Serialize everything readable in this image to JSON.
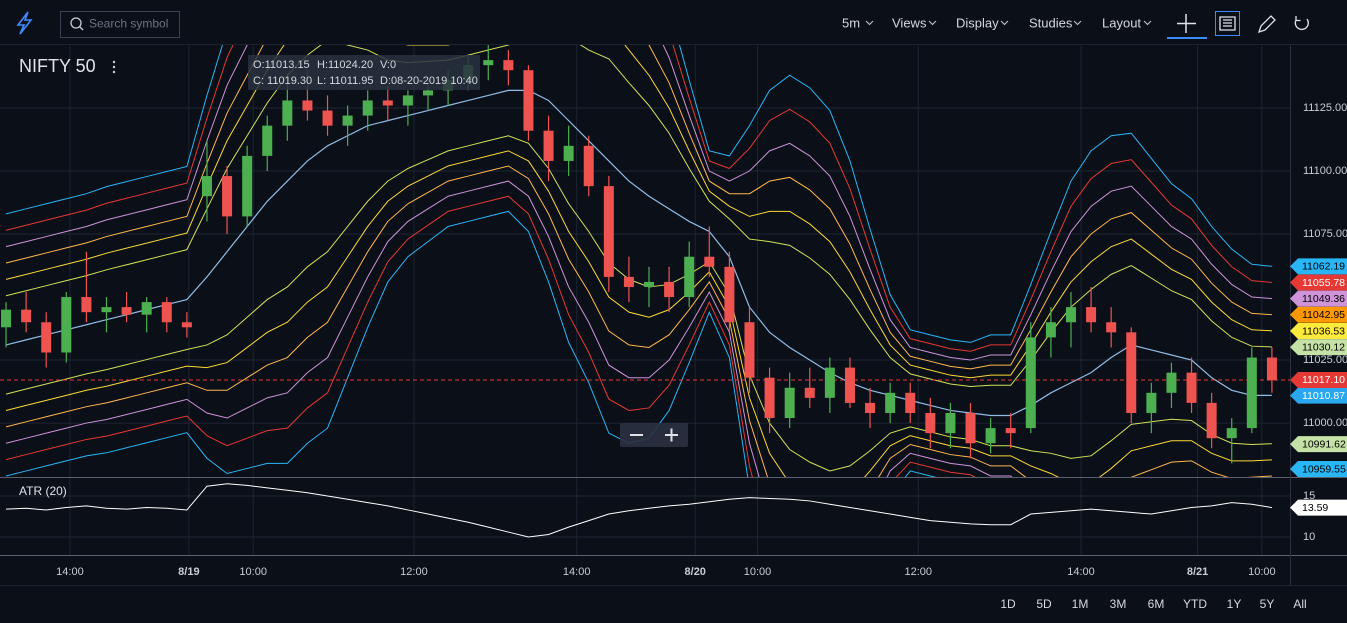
{
  "toolbar": {
    "search_placeholder": "Search symbol",
    "menus": [
      "5m",
      "Views",
      "Display",
      "Studies",
      "Layout"
    ]
  },
  "chart_data": {
    "type": "candlestick",
    "title": "NIFTY 50",
    "tooltip": [
      "O:11013.15",
      "H:11024.20",
      "V:0",
      "C: 11019.30",
      "L: 11011.95",
      "D:08-20-2019 10:40"
    ],
    "up_color": "#4caf50",
    "down_color": "#ef5350",
    "candles": {
      "open": [
        11038,
        11045,
        11040,
        11028,
        11050,
        11044,
        11046,
        11043,
        11048,
        11040,
        11090,
        11098,
        11082,
        11106,
        11118,
        11128,
        11124,
        11118,
        11122,
        11128,
        11126,
        11130,
        11132,
        11136,
        11142,
        11144,
        11140,
        11116,
        11104,
        11110,
        11094,
        11058,
        11054,
        11056,
        11050,
        11066,
        11062,
        11040,
        11018,
        11002,
        11014,
        11010,
        11022,
        11008,
        11004,
        11012,
        11004,
        10996,
        11004,
        10992,
        10998,
        10998,
        11034,
        11040,
        11046,
        11040,
        11036,
        11004,
        11012,
        11020,
        11008,
        10994,
        10998,
        11026
      ],
      "high": [
        11048,
        11052,
        11044,
        11052,
        11068,
        11050,
        11052,
        11050,
        11050,
        11044,
        11112,
        11102,
        11110,
        11122,
        11134,
        11140,
        11130,
        11126,
        11132,
        11134,
        11132,
        11136,
        11140,
        11146,
        11150,
        11148,
        11142,
        11122,
        11118,
        11114,
        11098,
        11066,
        11062,
        11062,
        11072,
        11078,
        11068,
        11046,
        11022,
        11020,
        11022,
        11026,
        11026,
        11014,
        11016,
        11016,
        11010,
        11008,
        11008,
        11002,
        11004,
        11040,
        11046,
        11052,
        11054,
        11046,
        11038,
        11016,
        11024,
        11026,
        11012,
        11002,
        11030,
        11030
      ],
      "low": [
        11030,
        11036,
        11022,
        11024,
        11040,
        11036,
        11040,
        11036,
        11036,
        11034,
        11080,
        11075,
        11078,
        11100,
        11112,
        11120,
        11114,
        11110,
        11116,
        11120,
        11118,
        11124,
        11126,
        11132,
        11136,
        11134,
        11112,
        11096,
        11098,
        11090,
        11052,
        11048,
        11046,
        11044,
        11046,
        11058,
        11036,
        11012,
        10996,
        10998,
        11006,
        11004,
        11006,
        10998,
        11000,
        11000,
        10990,
        10990,
        10986,
        10988,
        10990,
        10996,
        11026,
        11030,
        11036,
        11030,
        11000,
        10996,
        11006,
        11004,
        10990,
        10984,
        10996,
        11012
      ],
      "close": [
        11045,
        11040,
        11028,
        11050,
        11044,
        11046,
        11043,
        11048,
        11040,
        11038,
        11098,
        11082,
        11106,
        11118,
        11128,
        11124,
        11118,
        11122,
        11128,
        11126,
        11130,
        11132,
        11136,
        11142,
        11144,
        11140,
        11116,
        11104,
        11110,
        11094,
        11058,
        11054,
        11056,
        11050,
        11066,
        11062,
        11040,
        11018,
        11002,
        11014,
        11010,
        11022,
        11008,
        11004,
        11012,
        11004,
        10996,
        11004,
        10992,
        10998,
        10996,
        11034,
        11040,
        11046,
        11040,
        11036,
        11004,
        11012,
        11020,
        11008,
        10994,
        10998,
        11026,
        11017
      ]
    },
    "xlim": [
      -0.3,
      63.9
    ],
    "xticks": [
      {
        "value": 3.18,
        "label": "14:00"
      },
      {
        "value": 9.1,
        "label": "8/19"
      },
      {
        "value": 12.3,
        "label": "10:00"
      },
      {
        "value": 20.3,
        "label": "12:00"
      },
      {
        "value": 28.4,
        "label": "14:00"
      },
      {
        "value": 34.3,
        "label": "8/20"
      },
      {
        "value": 37.4,
        "label": "10:00"
      },
      {
        "value": 45.4,
        "label": "12:00"
      },
      {
        "value": 53.5,
        "label": "14:00"
      },
      {
        "value": 59.3,
        "label": "8/21"
      },
      {
        "value": 62.5,
        "label": "10:00"
      }
    ],
    "ylim": [
      10978.6,
      11150
    ],
    "yticks": [
      {
        "value": 11000,
        "label": "11000.00"
      },
      {
        "value": 11025,
        "label": "11025.00"
      },
      {
        "value": 11075,
        "label": "11075.00"
      },
      {
        "value": 11100,
        "label": "11100.00"
      },
      {
        "value": 11125,
        "label": "11125.00"
      }
    ],
    "grid": true,
    "bands": {
      "middle_color": "#8fbde6",
      "middle": [
        11031,
        11033,
        11035,
        11037,
        11039,
        11041,
        11043,
        11045,
        11047,
        11049,
        11058,
        11068,
        11078,
        11088,
        11096,
        11104,
        11110,
        11114,
        11118,
        11120,
        11122,
        11124,
        11126,
        11128,
        11130,
        11132,
        11132,
        11128,
        11120,
        11112,
        11104,
        11096,
        11090,
        11085,
        11080,
        11076,
        11066,
        11046,
        11036,
        11030,
        11025,
        11020,
        11016,
        11013,
        11011,
        11009,
        11007,
        11005,
        11004,
        11003,
        11003,
        11007,
        11012,
        11016,
        11020,
        11026,
        11031,
        11029,
        11027,
        11025,
        11018,
        11013,
        11011,
        11011
      ],
      "width": [
        6.5,
        6.5,
        6.5,
        6.5,
        6.5,
        6.6,
        6.6,
        6.6,
        6.6,
        6.6,
        9,
        11,
        12,
        13,
        14,
        14,
        14,
        12,
        10,
        8,
        7,
        6.5,
        6,
        6,
        6,
        6,
        7,
        9,
        11,
        12,
        13.5,
        13,
        12,
        10,
        7,
        4,
        5,
        9,
        12,
        13.5,
        13.5,
        13,
        11,
        8,
        5,
        3.5,
        3.5,
        3.5,
        3.5,
        4,
        4,
        6,
        8,
        10,
        11,
        11,
        10.5,
        9.5,
        8.5,
        8,
        7.5,
        7,
        6.5,
        6.4
      ],
      "multipliers": [
        3,
        4,
        5,
        6,
        7,
        8
      ],
      "colors": [
        "#d4e157",
        "#fdd835",
        "#ffb74d",
        "#ce93d8",
        "#e53935",
        "#29b6f6"
      ]
    },
    "price_tags": [
      {
        "value": 11062.19,
        "color": "#29b6f6",
        "text_color": "#000000"
      },
      {
        "value": 11055.78,
        "color": "#e53935",
        "text_color": "#ffffff"
      },
      {
        "value": 11049.36,
        "color": "#ce93d8",
        "text_color": "#000000"
      },
      {
        "value": 11042.95,
        "color": "#ff9800",
        "text_color": "#000000"
      },
      {
        "value": 11036.53,
        "color": "#ffeb3b",
        "text_color": "#000000"
      },
      {
        "value": 11030.12,
        "color": "#c5e1a5",
        "text_color": "#000000"
      },
      {
        "value": 11010.87,
        "color": "#29a8f0",
        "text_color": "#ffffff"
      },
      {
        "value": 10991.62,
        "color": "#c5e1a5",
        "text_color": "#000000"
      },
      {
        "value": 10959.55,
        "color": "#29b6f6",
        "text_color": "#000000"
      }
    ],
    "current_price": {
      "value": 11017.1,
      "label": "11017.10",
      "color": "#e53935",
      "text_color": "#ffffff"
    },
    "atr": {
      "name": "ATR (20)",
      "color": "#ffffff",
      "ylim": [
        7.8,
        17.2
      ],
      "yticks": [
        10,
        15
      ],
      "values": [
        13.4,
        13.5,
        13.3,
        13.6,
        13.8,
        13.5,
        13.4,
        13.6,
        13.5,
        13.3,
        16.2,
        16.5,
        16.3,
        16.0,
        15.7,
        15.4,
        15.0,
        14.6,
        14.2,
        13.8,
        13.3,
        12.8,
        12.3,
        11.8,
        11.2,
        10.6,
        10.0,
        10.3,
        11.2,
        12.0,
        12.8,
        13.2,
        13.5,
        13.8,
        14.0,
        14.3,
        14.6,
        14.8,
        14.7,
        14.6,
        14.4,
        14.0,
        13.6,
        13.2,
        12.8,
        12.4,
        12.0,
        11.8,
        11.6,
        11.5,
        11.5,
        12.8,
        13.0,
        13.2,
        13.4,
        13.2,
        13.0,
        12.8,
        13.2,
        13.6,
        13.8,
        14.2,
        14.0,
        13.59
      ]
    }
  },
  "ranges": [
    "1D",
    "5D",
    "1M",
    "3M",
    "6M",
    "YTD",
    "1Y",
    "5Y",
    "All"
  ]
}
